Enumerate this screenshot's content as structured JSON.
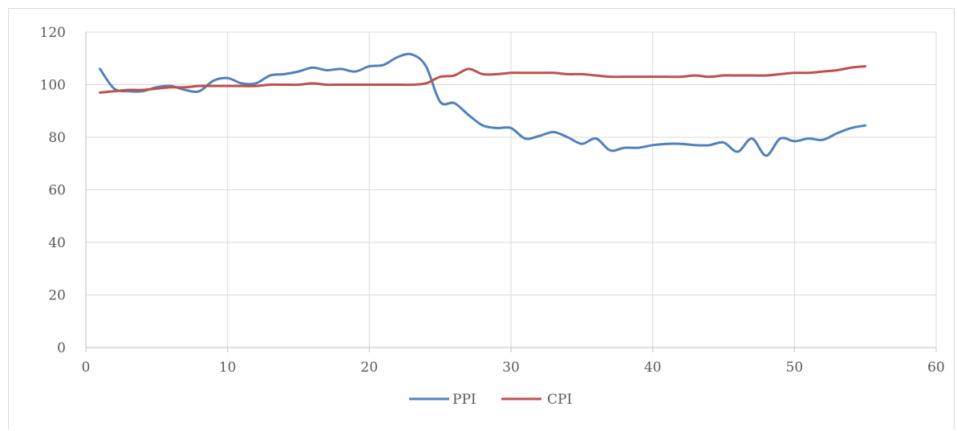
{
  "chart_data": {
    "type": "line",
    "title": "",
    "xlabel": "",
    "ylabel": "",
    "xlim": [
      0,
      60
    ],
    "ylim": [
      0,
      120
    ],
    "x_ticks": [
      "0",
      "10",
      "20",
      "30",
      "40",
      "50",
      "60"
    ],
    "y_ticks": [
      "0",
      "20",
      "40",
      "60",
      "80",
      "100",
      "120"
    ],
    "grid": true,
    "legend_position": "bottom",
    "x": [
      1,
      2,
      3,
      4,
      5,
      6,
      7,
      8,
      9,
      10,
      11,
      12,
      13,
      14,
      15,
      16,
      17,
      18,
      19,
      20,
      21,
      22,
      23,
      24,
      25,
      26,
      27,
      28,
      29,
      30,
      31,
      32,
      33,
      34,
      35,
      36,
      37,
      38,
      39,
      40,
      41,
      42,
      43,
      44,
      45,
      46,
      47,
      48,
      49,
      50,
      51,
      52,
      53,
      54,
      55
    ],
    "series": [
      {
        "name": "PPI",
        "color": "#4f81bd",
        "values": [
          106,
          98.5,
          97.5,
          97.5,
          99,
          99.5,
          98,
          97.5,
          101.5,
          102.5,
          100.5,
          100.5,
          103.5,
          104,
          105,
          106.5,
          105.5,
          106,
          105,
          107,
          107.5,
          110.5,
          111.5,
          107,
          93.5,
          93,
          88.5,
          84.5,
          83.5,
          83.5,
          79.5,
          80.5,
          82,
          80,
          77.5,
          79.5,
          75,
          76,
          76,
          77,
          77.5,
          77.5,
          77,
          77,
          78,
          74.5,
          79.5,
          73,
          79.5,
          78.5,
          79.5,
          79,
          81.5,
          83.5,
          84.5
        ]
      },
      {
        "name": "CPI",
        "color": "#c0504d",
        "values": [
          97,
          97.5,
          98,
          98,
          98.5,
          99,
          99,
          99.5,
          99.5,
          99.5,
          99.5,
          99.5,
          100,
          100,
          100,
          100.5,
          100,
          100,
          100,
          100,
          100,
          100,
          100,
          100.5,
          103,
          103.5,
          106,
          104,
          104,
          104.5,
          104.5,
          104.5,
          104.5,
          104,
          104,
          103.5,
          103,
          103,
          103,
          103,
          103,
          103,
          103.5,
          103,
          103.5,
          103.5,
          103.5,
          103.5,
          104,
          104.5,
          104.5,
          105,
          105.5,
          106.5,
          107
        ]
      }
    ]
  }
}
